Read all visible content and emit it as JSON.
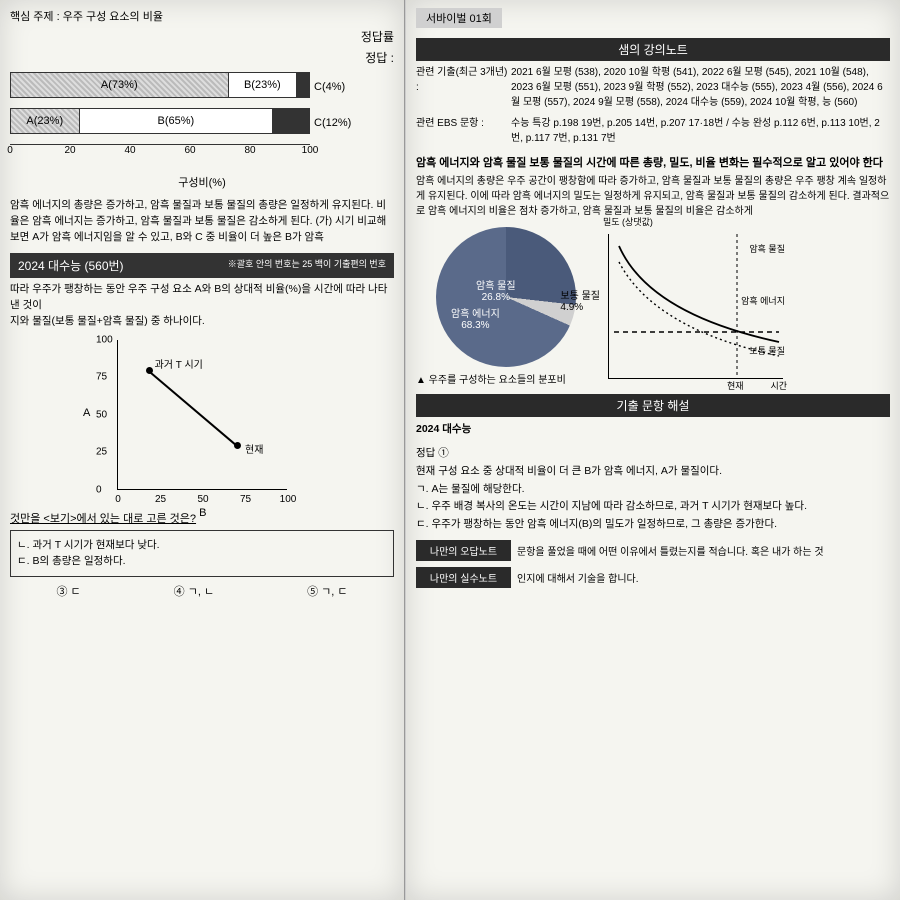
{
  "left": {
    "top_subject": "핵심 주제 : 우주 구성 요소의 비율",
    "answer_label": "정답률",
    "answer_label2": "정답 : ",
    "barChart": {
      "type": "stackedBar",
      "axis_label": "구성비(%)",
      "ticks": [
        0,
        20,
        40,
        60,
        80,
        100
      ],
      "rows": [
        {
          "extra": "C(4%)",
          "segs": [
            {
              "label": "A(73%)",
              "w": 73,
              "color": "#bfbfbf",
              "pattern": true
            },
            {
              "label": "B(23%)",
              "w": 23,
              "color": "#ffffff"
            },
            {
              "label": "",
              "w": 4,
              "color": "#333333"
            }
          ]
        },
        {
          "extra": "C(12%)",
          "segs": [
            {
              "label": "A(23%)",
              "w": 23,
              "color": "#bfbfbf",
              "pattern": true
            },
            {
              "label": "B(65%)",
              "w": 65,
              "color": "#ffffff"
            },
            {
              "label": "",
              "w": 12,
              "color": "#333333"
            }
          ]
        }
      ]
    },
    "para": "암흑 에너지의 총량은 증가하고, 암흑 물질과 보통 물질의 총량은 일정하게 유지된다. 비율은 암흑 에너지는 증가하고, 암흑 물질과 보통 물질은 감소하게 된다. (가) 시기 비교해보면 A가 암흑 에너지임을 알 수 있고, B와 C 중 비율이 더 높은 B가 암흑",
    "q": {
      "title": "2024 대수능 (560번)",
      "note": "※괄호 안의 번호는 25 백이 기출편의 번호",
      "stem1": "따라 우주가 팽창하는 동안 우주 구성 요소 A와 B의 상대적 비율(%)을 시간에 따라 나타낸 것이",
      "stem2": "지와 물질(보통 물질+암흑 물질) 중 하나이다.",
      "scatter": {
        "ylabel": "A",
        "xlabel": "B",
        "yticks": [
          0,
          25,
          50,
          75,
          100
        ],
        "xticks": [
          0,
          25,
          50,
          75,
          100
        ],
        "points": [
          {
            "x": 18,
            "y": 80,
            "tag": "과거 T 시기"
          },
          {
            "x": 70,
            "y": 30,
            "tag": "현재"
          }
        ]
      },
      "prompt": "것만을 <보기>에서 있는 대로 고른 것은?",
      "choices_box": [
        "ㄴ. 과거 T 시기가 현재보다 낮다.",
        "ㄷ. B의 총량은 일정하다."
      ],
      "choices": [
        "③ ㄷ",
        "④ ㄱ, ㄴ",
        "⑤ ㄱ, ㄷ"
      ]
    }
  },
  "right": {
    "tab": "서바이벌 01회",
    "sec1_title": "샘의 강의노트",
    "ref1_label": "관련 기출(최근 3개년) :",
    "ref1_text": "2021 6월 모평 (538), 2020 10월 학평 (541), 2022 6월 모평 (545), 2021 10월 (548), 2023 6월 모평 (551), 2023 9월 학평 (552), 2023 대수능 (555), 2023 4월 (556), 2024 6월 모평 (557), 2024 9월 모평 (558), 2024 대수능 (559), 2024 10월 학평, 능 (560)",
    "ref2_label": "관련 EBS 문항 :",
    "ref2_text": "수능 특강 p.198 19번, p.205 14번, p.207 17·18번 / 수능 완성 p.112 6번, p.113 10번, 2번, p.117 7번, p.131 7번",
    "bold": "암흑 에너지와 암흑 물질 보통 물질의 시간에 따른 총량, 밀도, 비율 변화는 필수적으로 알고 있어야 한다",
    "explain": "암흑 에너지의 총량은 우주 공간이 팽창함에 따라 증가하고, 암흑 물질과 보통 물질의 총량은 우주 팽창 계속 일정하게 유지된다. 이에 따라 암흑 에너지의 밀도는 일정하게 유지되고, 암흑 물질과 보통 물질의 감소하게 된다. 결과적으로 암흑 에너지의 비율은 점차 증가하고, 암흑 물질과 보통 물질의 비율은 감소하게",
    "pie": {
      "type": "pie",
      "slices": [
        {
          "label": "암흑 물질",
          "sub": "26.8%",
          "color": "#4a5a7a"
        },
        {
          "label": "암흑 에너지",
          "sub": "68.3%",
          "color": "#5a6a8a"
        },
        {
          "label": "보통 물질",
          "sub": "4.9%",
          "color": "#d0d0d0"
        }
      ],
      "caption": "▲ 우주를 구성하는 요소들의 분포비"
    },
    "curve": {
      "ylabel": "밀도\n(상댓값)",
      "labels": [
        "암흑 물질",
        "암흑 에너지",
        "보통 물질"
      ],
      "xaxis_left": "현재",
      "xaxis_right": "시간",
      "colors": {
        "solid": "#000000",
        "dash": "#000000"
      }
    },
    "sec2_title": "기출 문항 해설",
    "ans_title": "2024 대수능",
    "ans_num": "정답 ①",
    "ans_lines": [
      "현재 구성 요소 중 상대적 비율이 더 큰 B가 암흑 에너지, A가 물질이다.",
      "ㄱ. A는 물질에 해당한다.",
      "ㄴ. 우주 배경 복사의 온도는 시간이 지남에 따라 감소하므로, 과거 T 시기가 현재보다 높다.",
      "ㄷ. 우주가 팽창하는 동안 암흑 에너지(B)의 밀도가 일정하므로, 그 총량은 증가한다."
    ],
    "note1_tab": "나만의 오답노트",
    "note1_txt": "문항을 풀었을 때에 어떤 이유에서 틀렸는지를 적습니다. 혹은 내가 하는 것",
    "note2_tab": "나만의 실수노트",
    "note2_txt": "인지에 대해서 기술을 합니다."
  }
}
